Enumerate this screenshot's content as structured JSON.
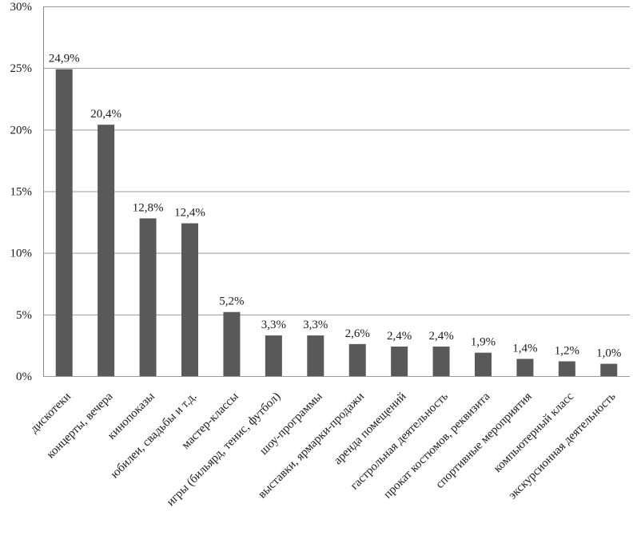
{
  "chart_data": {
    "type": "bar",
    "categories": [
      "дискотеки",
      "концерты, вечера",
      "кинопоказы",
      "юбилеи, свадьбы и т.д.",
      "мастер-классы",
      "игры (бильярд, тенис, футбол)",
      "шоу-программы",
      "выставки, ярмарки-продажи",
      "аренда помещений",
      "гастрольная деятельность",
      "прокат костюмов, реквизита",
      "спортивные мероприятия",
      "компьютерный класс",
      "экскурсионная деятельность"
    ],
    "values": [
      24.9,
      20.4,
      12.8,
      12.4,
      5.2,
      3.3,
      3.3,
      2.6,
      2.4,
      2.4,
      1.9,
      1.4,
      1.2,
      1.0
    ],
    "data_labels": [
      "24,9%",
      "20,4%",
      "12,8%",
      "12,4%",
      "5,2%",
      "3,3%",
      "3,3%",
      "2,6%",
      "2,4%",
      "2,4%",
      "1,9%",
      "1,4%",
      "1,2%",
      "1,0%"
    ],
    "y_ticks": [
      "0%",
      "5%",
      "10%",
      "15%",
      "20%",
      "25%",
      "30%"
    ],
    "ylim": [
      0,
      30
    ],
    "grid": true,
    "legend": "none",
    "bar_color": "#595959",
    "title": "",
    "xlabel": "",
    "ylabel": ""
  }
}
